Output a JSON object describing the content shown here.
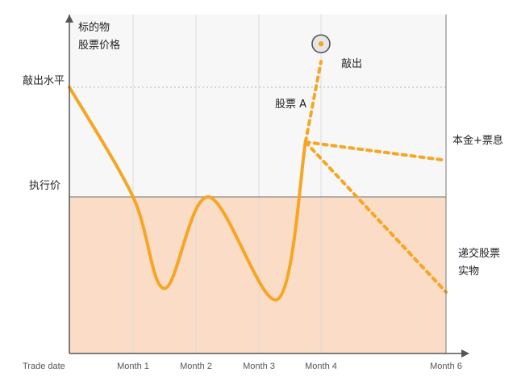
{
  "chart_data": {
    "type": "line",
    "title": "",
    "ylabel_lines": [
      "标的物",
      "股票价格"
    ],
    "xlabel": "",
    "x_ticks": [
      "Trade date",
      "Month 1",
      "Month 2",
      "Month 3",
      "Month 4",
      "Month 6"
    ],
    "levels": [
      {
        "name": "敲出水平",
        "value": 100
      },
      {
        "name": "执行价",
        "value": 70
      }
    ],
    "ylim": [
      0,
      120
    ],
    "colors": {
      "line": "#f5a623",
      "below_strike_fill": "#fbdcc7",
      "plot_bg": "#f7f7f7",
      "axis": "#555555"
    },
    "series": [
      {
        "name": "股票 A",
        "style": "solid",
        "points": [
          {
            "month": 0,
            "value": 100
          },
          {
            "month": 1,
            "value": 70
          },
          {
            "month": 1.5,
            "value": 45
          },
          {
            "month": 2.2,
            "value": 70
          },
          {
            "month": 3.3,
            "value": 42
          },
          {
            "month": 3.75,
            "value": 85
          }
        ]
      },
      {
        "name": "敲出",
        "style": "dashed",
        "points": [
          {
            "month": 3.75,
            "value": 85
          },
          {
            "month": 4.0,
            "value": 107
          }
        ]
      },
      {
        "name": "本金+票息",
        "style": "dashed",
        "points": [
          {
            "month": 3.75,
            "value": 85
          },
          {
            "month": 6,
            "value": 80
          }
        ]
      },
      {
        "name": "递交股票实物",
        "style": "dashed",
        "points": [
          {
            "month": 3.75,
            "value": 85
          },
          {
            "month": 6,
            "value": 44
          }
        ]
      }
    ],
    "annotations": {
      "stock_label": "股票 A",
      "knockout_label": "敲出",
      "principal_label": "本金+票息",
      "delivery_label_lines": [
        "递交股票",
        "实物"
      ]
    }
  }
}
